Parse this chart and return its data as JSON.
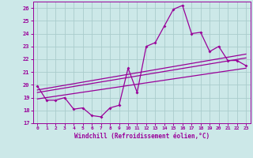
{
  "xlabel": "Windchill (Refroidissement éolien,°C)",
  "xlim": [
    -0.5,
    23.5
  ],
  "ylim": [
    17,
    26.5
  ],
  "yticks": [
    17,
    18,
    19,
    20,
    21,
    22,
    23,
    24,
    25,
    26
  ],
  "xticks": [
    0,
    1,
    2,
    3,
    4,
    5,
    6,
    7,
    8,
    9,
    10,
    11,
    12,
    13,
    14,
    15,
    16,
    17,
    18,
    19,
    20,
    21,
    22,
    23
  ],
  "background_color": "#cce8e8",
  "grid_color": "#aacccc",
  "line_color": "#990099",
  "main_series": [
    [
      0,
      19.9
    ],
    [
      1,
      18.8
    ],
    [
      2,
      18.8
    ],
    [
      3,
      19.0
    ],
    [
      4,
      18.1
    ],
    [
      5,
      18.2
    ],
    [
      6,
      17.6
    ],
    [
      7,
      17.5
    ],
    [
      8,
      18.2
    ],
    [
      9,
      18.4
    ],
    [
      10,
      21.3
    ],
    [
      11,
      19.4
    ],
    [
      12,
      23.0
    ],
    [
      13,
      23.3
    ],
    [
      14,
      24.6
    ],
    [
      15,
      25.9
    ],
    [
      16,
      26.2
    ],
    [
      17,
      24.0
    ],
    [
      18,
      24.1
    ],
    [
      19,
      22.6
    ],
    [
      20,
      23.0
    ],
    [
      21,
      21.9
    ],
    [
      22,
      21.9
    ],
    [
      23,
      21.5
    ]
  ],
  "regression_lines": [
    [
      [
        0,
        19.6
      ],
      [
        23,
        22.4
      ]
    ],
    [
      [
        0,
        19.4
      ],
      [
        23,
        22.1
      ]
    ],
    [
      [
        0,
        18.9
      ],
      [
        23,
        21.3
      ]
    ]
  ]
}
